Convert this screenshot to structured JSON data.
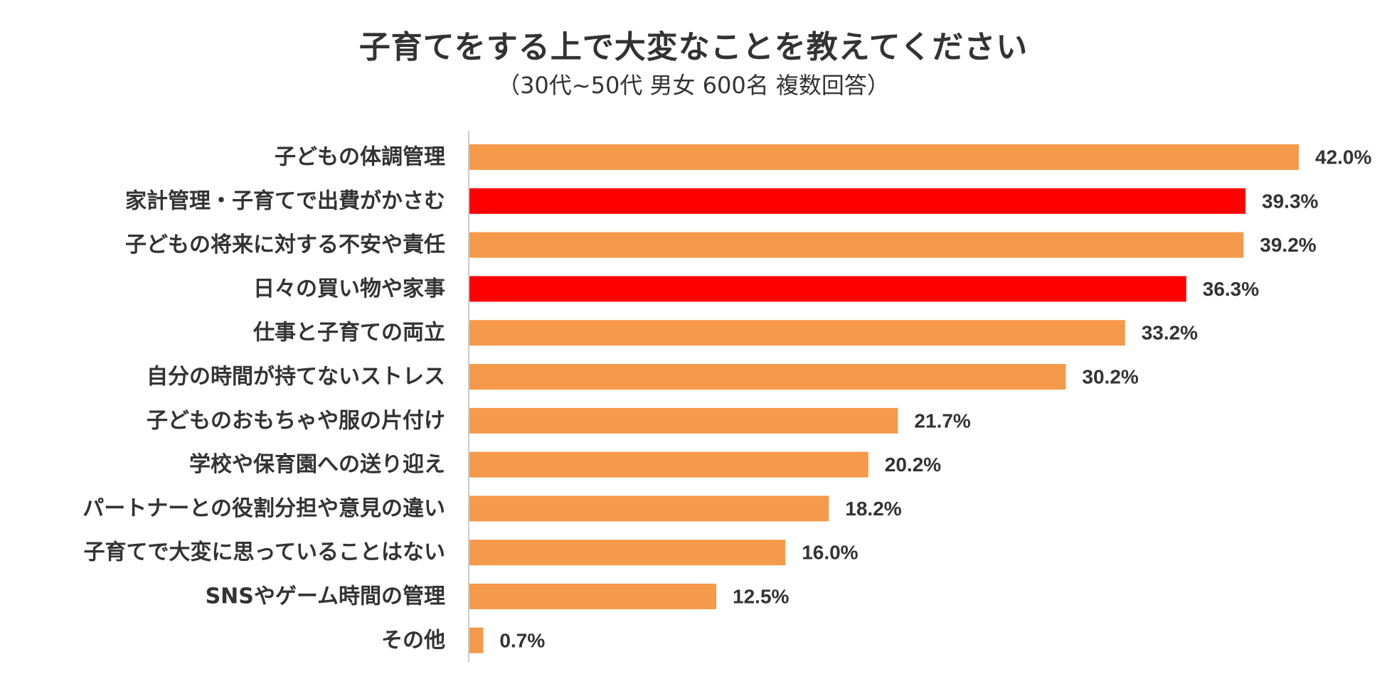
{
  "chart_data": {
    "type": "bar",
    "orientation": "horizontal",
    "title": "子育てをする上で大変なことを教えてください",
    "subtitle": "（30代~50代 男女 600名 複数回答）",
    "categories": [
      "子どもの体調管理",
      "家計管理・子育てで出費がかさむ",
      "子どもの将来に対する不安や責任",
      "日々の買い物や家事",
      "仕事と子育ての両立",
      "自分の時間が持てないストレス",
      "子どものおもちゃや服の片付け",
      "学校や保育園への送り迎え",
      "パートナーとの役割分担や意見の違い",
      "子育てで大変に思っていることはない",
      "SNSやゲーム時間の管理",
      "その他"
    ],
    "values": [
      42.0,
      39.3,
      39.2,
      36.3,
      33.2,
      30.2,
      21.7,
      20.2,
      18.2,
      16.0,
      12.5,
      0.7
    ],
    "value_labels": [
      "42.0%",
      "39.3%",
      "39.2%",
      "36.3%",
      "33.2%",
      "30.2%",
      "21.7%",
      "20.2%",
      "18.2%",
      "16.0%",
      "12.5%",
      "0.7%"
    ],
    "highlighted": [
      false,
      true,
      false,
      true,
      false,
      false,
      false,
      false,
      false,
      false,
      false,
      false
    ],
    "xlim": [
      0,
      42.0
    ],
    "xlabel": "",
    "ylabel": "",
    "grid": false,
    "legend": "none",
    "colors": {
      "bar": "#F59A4A",
      "highlight": "#FF0000",
      "axis": "#CCCCCC",
      "text": "#333333"
    }
  }
}
